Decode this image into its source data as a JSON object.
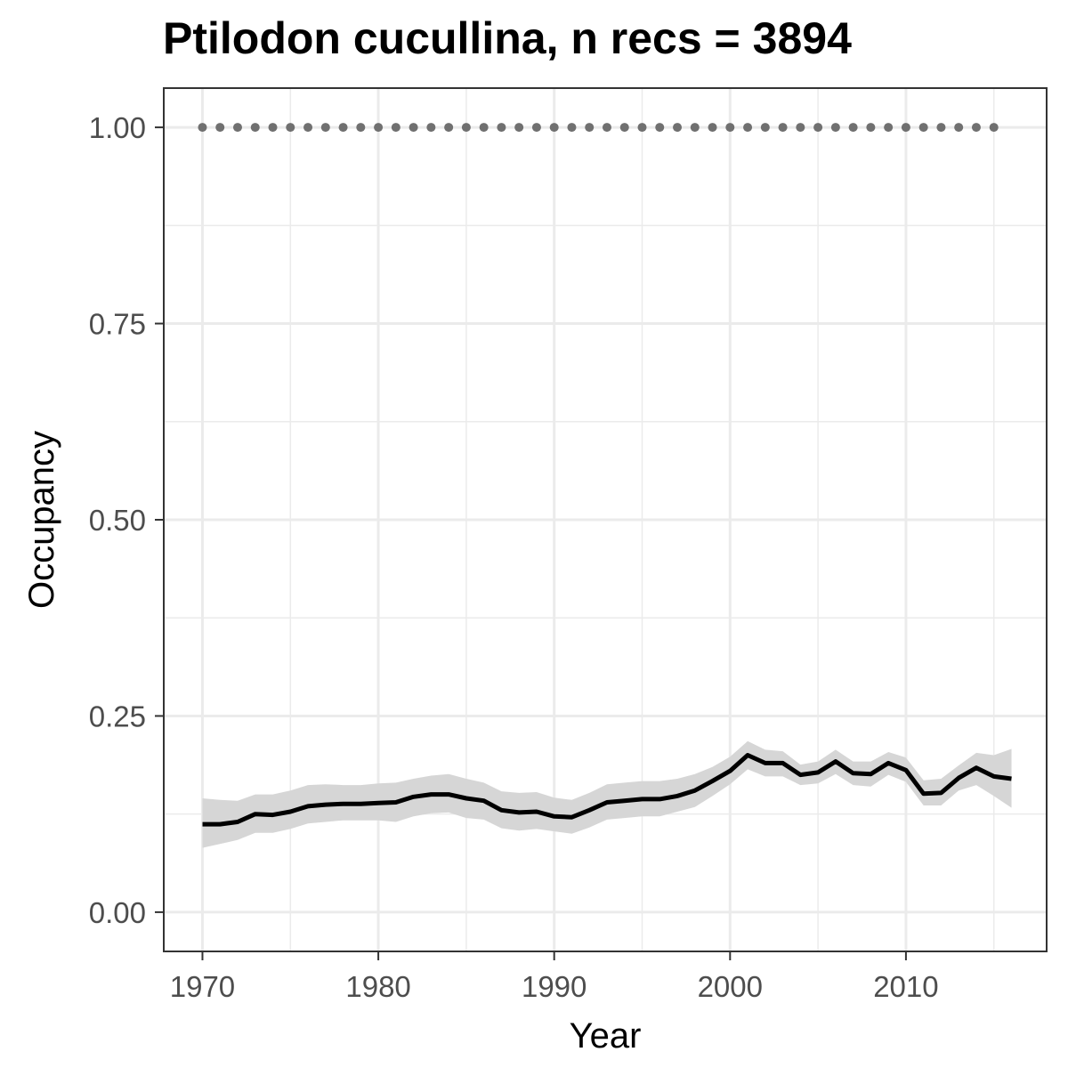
{
  "chart_data": {
    "type": "line",
    "title": "Ptilodon cucullina, n recs = 3894",
    "xlabel": "Year",
    "ylabel": "Occupancy",
    "xlim": [
      1967.8,
      2018.0
    ],
    "ylim": [
      -0.05,
      1.05
    ],
    "x_ticks": [
      1970,
      1980,
      1990,
      2000,
      2010
    ],
    "x_tick_labels": [
      "1970",
      "1980",
      "1990",
      "2000",
      "2010"
    ],
    "y_ticks": [
      0,
      0.25,
      0.5,
      0.75,
      1.0
    ],
    "y_tick_labels": [
      "0.00",
      "0.25",
      "0.50",
      "0.75",
      "1.00"
    ],
    "grid": true,
    "legend": "none",
    "colors": {
      "line": "#000000",
      "ribbon": "#d6d6d6",
      "dots": "#707070",
      "grid": "#ebebeb",
      "panel_border": "#333333"
    },
    "series": [
      {
        "kind": "line",
        "x": [
          1970,
          1971,
          1972,
          1973,
          1974,
          1975,
          1976,
          1977,
          1978,
          1979,
          1980,
          1981,
          1982,
          1983,
          1984,
          1985,
          1986,
          1987,
          1988,
          1989,
          1990,
          1991,
          1992,
          1993,
          1994,
          1995,
          1996,
          1997,
          1998,
          1999,
          2000,
          2001,
          2002,
          2003,
          2004,
          2005,
          2006,
          2007,
          2008,
          2009,
          2010,
          2011,
          2012,
          2013,
          2014,
          2015,
          2016
        ],
        "values": [
          0.112,
          0.112,
          0.115,
          0.125,
          0.124,
          0.128,
          0.135,
          0.137,
          0.138,
          0.138,
          0.139,
          0.14,
          0.147,
          0.15,
          0.15,
          0.145,
          0.142,
          0.13,
          0.127,
          0.128,
          0.122,
          0.121,
          0.13,
          0.14,
          0.142,
          0.144,
          0.144,
          0.148,
          0.155,
          0.167,
          0.18,
          0.2,
          0.19,
          0.19,
          0.175,
          0.178,
          0.192,
          0.177,
          0.176,
          0.19,
          0.181,
          0.151,
          0.152,
          0.171,
          0.184,
          0.173,
          0.17
        ],
        "lower": [
          0.082,
          0.087,
          0.092,
          0.101,
          0.101,
          0.106,
          0.113,
          0.115,
          0.117,
          0.117,
          0.117,
          0.115,
          0.122,
          0.126,
          0.127,
          0.12,
          0.118,
          0.107,
          0.104,
          0.106,
          0.103,
          0.1,
          0.108,
          0.118,
          0.12,
          0.122,
          0.122,
          0.128,
          0.134,
          0.148,
          0.163,
          0.182,
          0.173,
          0.173,
          0.162,
          0.164,
          0.176,
          0.162,
          0.16,
          0.175,
          0.166,
          0.136,
          0.136,
          0.155,
          0.162,
          0.148,
          0.133
        ],
        "upper": [
          0.145,
          0.143,
          0.142,
          0.15,
          0.15,
          0.155,
          0.162,
          0.163,
          0.162,
          0.162,
          0.164,
          0.165,
          0.17,
          0.174,
          0.176,
          0.17,
          0.165,
          0.154,
          0.152,
          0.153,
          0.146,
          0.143,
          0.152,
          0.163,
          0.165,
          0.167,
          0.167,
          0.17,
          0.176,
          0.185,
          0.198,
          0.218,
          0.207,
          0.205,
          0.188,
          0.192,
          0.207,
          0.192,
          0.192,
          0.204,
          0.197,
          0.168,
          0.17,
          0.187,
          0.203,
          0.2,
          0.208
        ]
      },
      {
        "kind": "points",
        "x": [
          1970,
          1971,
          1972,
          1973,
          1974,
          1975,
          1976,
          1977,
          1978,
          1979,
          1980,
          1981,
          1982,
          1983,
          1984,
          1985,
          1986,
          1987,
          1988,
          1989,
          1990,
          1991,
          1992,
          1993,
          1994,
          1995,
          1996,
          1997,
          1998,
          1999,
          2000,
          2001,
          2002,
          2003,
          2004,
          2005,
          2006,
          2007,
          2008,
          2009,
          2010,
          2011,
          2012,
          2013,
          2014,
          2015
        ],
        "values": [
          1,
          1,
          1,
          1,
          1,
          1,
          1,
          1,
          1,
          1,
          1,
          1,
          1,
          1,
          1,
          1,
          1,
          1,
          1,
          1,
          1,
          1,
          1,
          1,
          1,
          1,
          1,
          1,
          1,
          1,
          1,
          1,
          1,
          1,
          1,
          1,
          1,
          1,
          1,
          1,
          1,
          1,
          1,
          1,
          1,
          1
        ]
      }
    ]
  }
}
